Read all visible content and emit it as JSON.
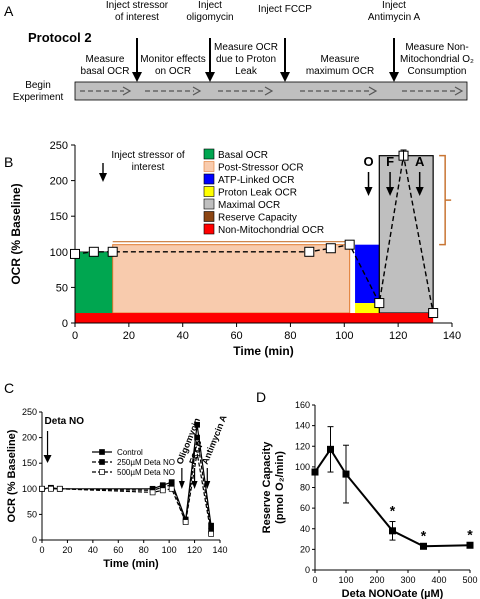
{
  "panel_a": {
    "label": "A",
    "title": "Protocol 2",
    "begin": [
      "Begin",
      "Experiment"
    ],
    "arrow_labels": [
      [
        "Inject stressor",
        "of interest"
      ],
      [
        "Inject",
        "oligomycin"
      ],
      [
        "Inject FCCP"
      ],
      [
        "Inject",
        "Antimycin A"
      ]
    ],
    "measure_labels": [
      [
        "Measure",
        "basal OCR"
      ],
      [
        "Monitor effects",
        "on OCR"
      ],
      [
        "Measure OCR",
        "due to Proton",
        "Leak"
      ],
      [
        "Measure",
        "maximum OCR"
      ],
      [
        "Measure Non-",
        "Mitochondrial O₂",
        "Consumption"
      ]
    ],
    "colors": {
      "bar": "#bfbfbf"
    }
  },
  "chart_data": [
    {
      "panel": "B",
      "type": "line",
      "xlabel": "Time (min)",
      "ylabel": "OCR (% Baseline)",
      "xlim": [
        0,
        140
      ],
      "ylim": [
        0,
        250
      ],
      "xticks": [
        0,
        20,
        40,
        60,
        80,
        100,
        120,
        140
      ],
      "yticks": [
        0,
        50,
        100,
        150,
        200,
        250
      ],
      "annotation": [
        "Inject stressor of",
        "interest"
      ],
      "markers": [
        "O",
        "F",
        "A"
      ],
      "series": [
        {
          "name": "",
          "x": [
            0,
            7,
            14,
            87,
            95,
            102,
            113,
            122,
            133
          ],
          "y": [
            97,
            100,
            100,
            100,
            105,
            110,
            28,
            235,
            14
          ]
        }
      ],
      "legend": [
        {
          "label": "Basal OCR",
          "color": "#00a650"
        },
        {
          "label": "Post-Stressor OCR",
          "color": "#f8cbad"
        },
        {
          "label": "ATP-Linked OCR",
          "color": "#0000ff"
        },
        {
          "label": "Proton Leak OCR",
          "color": "#ffff00"
        },
        {
          "label": "Maximal OCR",
          "color": "#bfbfbf"
        },
        {
          "label": "Reserve Capacity",
          "color": "#8b4513"
        },
        {
          "label": "Non-Mitochondrial OCR",
          "color": "#ff0000"
        }
      ]
    },
    {
      "panel": "C",
      "type": "line",
      "xlabel": "Time (min)",
      "ylabel": "OCR (% Baseline)",
      "xlim": [
        0,
        140
      ],
      "ylim": [
        0,
        250
      ],
      "xticks": [
        0,
        20,
        40,
        60,
        80,
        100,
        120,
        140
      ],
      "yticks": [
        0,
        50,
        100,
        150,
        200,
        250
      ],
      "annotations": [
        "Deta NO",
        "Oligomycin",
        "FCCP",
        "Antimycin A"
      ],
      "x": [
        0,
        7,
        14,
        87,
        95,
        102,
        113,
        122,
        133
      ],
      "series": [
        {
          "name": "Control",
          "y": [
            100,
            102,
            100,
            100,
            107,
            113,
            40,
            225,
            28
          ]
        },
        {
          "name": "250µM Deta NO",
          "y": [
            100,
            101,
            100,
            97,
            103,
            108,
            37,
            200,
            18
          ]
        },
        {
          "name": "500µM Deta NO",
          "y": [
            100,
            100,
            100,
            93,
            97,
            100,
            35,
            170,
            12
          ]
        }
      ]
    },
    {
      "panel": "D",
      "type": "line",
      "xlabel": "Deta NONOate (µM)",
      "ylabel": "Reserve Capacity (pmol O₂/min)",
      "xlim": [
        0,
        500
      ],
      "ylim": [
        0,
        160
      ],
      "xticks": [
        0,
        100,
        200,
        300,
        400,
        500
      ],
      "yticks": [
        0,
        20,
        40,
        60,
        80,
        100,
        120,
        140,
        160
      ],
      "series": [
        {
          "name": "",
          "x": [
            0,
            50,
            100,
            250,
            350,
            500
          ],
          "y": [
            95,
            117,
            93,
            38,
            23,
            24
          ],
          "err": [
            0,
            22,
            28,
            9,
            0,
            0
          ],
          "significant": [
            false,
            false,
            false,
            true,
            true,
            true
          ]
        }
      ],
      "sig_symbol": "*"
    }
  ]
}
